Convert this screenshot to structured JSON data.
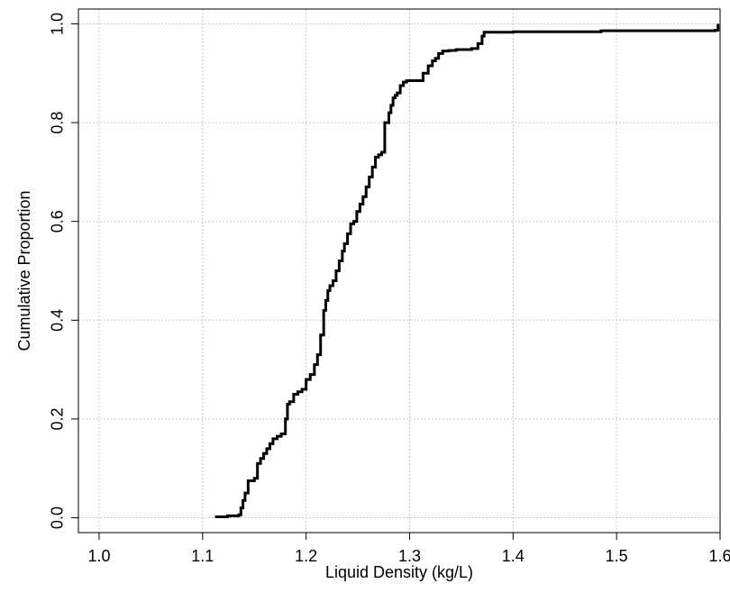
{
  "chart_data": {
    "type": "line",
    "title": "",
    "xlabel": "Liquid Density (kg/L)",
    "ylabel": "Cumulative Proportion",
    "xlim": [
      0.98,
      1.6
    ],
    "ylim": [
      -0.03,
      1.03
    ],
    "x_ticks": [
      1.0,
      1.1,
      1.2,
      1.3,
      1.4,
      1.5,
      1.6
    ],
    "x_tick_labels": [
      "1.0",
      "1.1",
      "1.2",
      "1.3",
      "1.4",
      "1.5",
      "1.6"
    ],
    "y_ticks": [
      0.0,
      0.2,
      0.4,
      0.6,
      0.8,
      1.0
    ],
    "y_tick_labels": [
      "0.0",
      "0.2",
      "0.4",
      "0.6",
      "0.8",
      "1.0"
    ],
    "grid": true,
    "step": true,
    "series": [
      {
        "color": "#000000",
        "x": [
          1.112,
          1.124,
          1.135,
          1.137,
          1.139,
          1.141,
          1.144,
          1.15,
          1.153,
          1.156,
          1.159,
          1.162,
          1.165,
          1.168,
          1.172,
          1.176,
          1.18,
          1.182,
          1.184,
          1.188,
          1.192,
          1.196,
          1.2,
          1.204,
          1.208,
          1.211,
          1.214,
          1.217,
          1.219,
          1.221,
          1.223,
          1.226,
          1.229,
          1.232,
          1.235,
          1.237,
          1.24,
          1.243,
          1.246,
          1.249,
          1.252,
          1.255,
          1.258,
          1.261,
          1.264,
          1.267,
          1.27,
          1.273,
          1.276,
          1.278,
          1.28,
          1.282,
          1.284,
          1.286,
          1.288,
          1.291,
          1.294,
          1.297,
          1.3,
          1.306,
          1.313,
          1.318,
          1.322,
          1.325,
          1.328,
          1.332,
          1.338,
          1.345,
          1.36,
          1.366,
          1.37,
          1.372,
          1.4,
          1.485,
          1.595,
          1.598
        ],
        "y": [
          0.002,
          0.004,
          0.006,
          0.02,
          0.035,
          0.05,
          0.075,
          0.08,
          0.11,
          0.12,
          0.13,
          0.14,
          0.15,
          0.16,
          0.165,
          0.17,
          0.2,
          0.23,
          0.235,
          0.25,
          0.255,
          0.26,
          0.28,
          0.29,
          0.31,
          0.33,
          0.37,
          0.42,
          0.44,
          0.46,
          0.47,
          0.48,
          0.5,
          0.52,
          0.54,
          0.555,
          0.575,
          0.595,
          0.6,
          0.62,
          0.635,
          0.65,
          0.67,
          0.69,
          0.71,
          0.73,
          0.735,
          0.74,
          0.8,
          0.8,
          0.82,
          0.835,
          0.85,
          0.855,
          0.86,
          0.875,
          0.882,
          0.885,
          0.885,
          0.885,
          0.9,
          0.915,
          0.925,
          0.93,
          0.94,
          0.945,
          0.946,
          0.948,
          0.95,
          0.96,
          0.975,
          0.983,
          0.984,
          0.986,
          0.987,
          1.0
        ]
      }
    ]
  }
}
